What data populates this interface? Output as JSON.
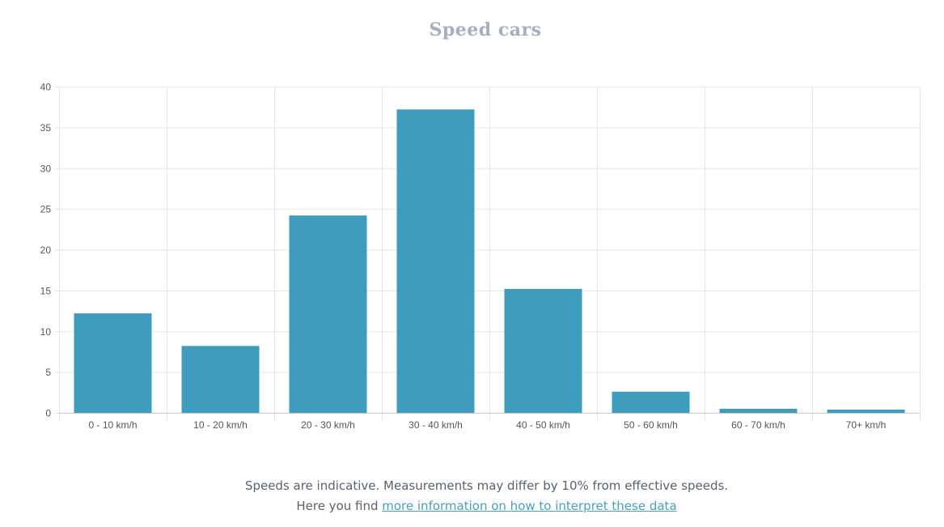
{
  "chart_data": {
    "type": "bar",
    "title": "Speed cars",
    "categories": [
      "0 - 10 km/h",
      "10 - 20 km/h",
      "20 - 30 km/h",
      "30 - 40 km/h",
      "40 - 50 km/h",
      "50 - 60 km/h",
      "60 - 70 km/h",
      "70+ km/h"
    ],
    "values": [
      12.2,
      8.2,
      24.2,
      37.2,
      15.2,
      2.6,
      0.5,
      0.4
    ],
    "ylim": [
      0,
      40
    ],
    "yticks": [
      0,
      5,
      10,
      15,
      20,
      25,
      30,
      35,
      40
    ],
    "grid": true,
    "legend": "none",
    "colors": {
      "bar": "#3f9cbc"
    }
  },
  "footer": {
    "note": "Speeds are indicative. Measurements may differ by 10% from effective speeds.",
    "prefix": "Here you find ",
    "link_text": "more information on how to interpret these data"
  }
}
